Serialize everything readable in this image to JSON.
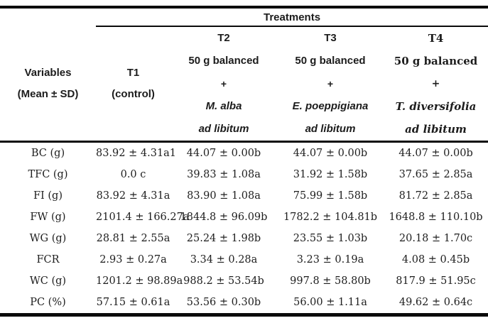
{
  "table": {
    "treatments_header": "Treatments",
    "variables_header": {
      "line1": "Variables",
      "line2": "(Mean ± SD)"
    },
    "columns": [
      {
        "code": "T1",
        "sub": "(control)"
      },
      {
        "code": "T2",
        "ration": "50 g balanced",
        "plus": "+",
        "species": "M. alba",
        "adlib": "ad libitum"
      },
      {
        "code": "T3",
        "ration": "50 g balanced",
        "plus": "+",
        "species": "E. poeppigiana",
        "adlib": "ad libitum"
      },
      {
        "code": "T4",
        "ration": "50 g balanced",
        "plus": "+",
        "species": "T. diversifolia",
        "adlib": "ad libitum"
      }
    ],
    "rows": [
      {
        "label": "BC (g)",
        "values": [
          "83.92 ± 4.31a1",
          "44.07 ± 0.00b",
          "44.07 ± 0.00b",
          "44.07 ± 0.00b"
        ]
      },
      {
        "label": "TFC (g)",
        "values": [
          "0.0 c",
          "39.83 ± 1.08a",
          "31.92 ± 1.58b",
          "37.65 ± 2.85a"
        ]
      },
      {
        "label": "FI (g)",
        "values": [
          "83.92 ± 4.31a",
          "83.90 ± 1.08a",
          "75.99 ± 1.58b",
          "81.72 ± 2.85a"
        ]
      },
      {
        "label": "FW (g)",
        "values": [
          "2101.4 ± 166.27a",
          "1844.8 ± 96.09b",
          "1782.2 ± 104.81b",
          "1648.8 ± 110.10b"
        ]
      },
      {
        "label": "WG (g)",
        "values": [
          "28.81 ± 2.55a",
          "25.24 ± 1.98b",
          "23.55 ± 1.03b",
          "20.18 ± 1.70c"
        ]
      },
      {
        "label": "FCR",
        "values": [
          "2.93 ± 0.27a",
          "3.34 ± 0.28a",
          "3.23 ± 0.19a",
          "4.08 ± 0.45b"
        ]
      },
      {
        "label": "WC (g)",
        "values": [
          "1201.2 ± 98.89a",
          "988.2 ± 53.54b",
          "997.8 ± 58.80b",
          "817.9 ± 51.95c"
        ]
      },
      {
        "label": "PC (%)",
        "values": [
          "57.15 ± 0.61a",
          "53.56 ± 0.30b",
          "56.00 ± 1.11a",
          "49.62 ± 0.64c"
        ]
      }
    ]
  }
}
